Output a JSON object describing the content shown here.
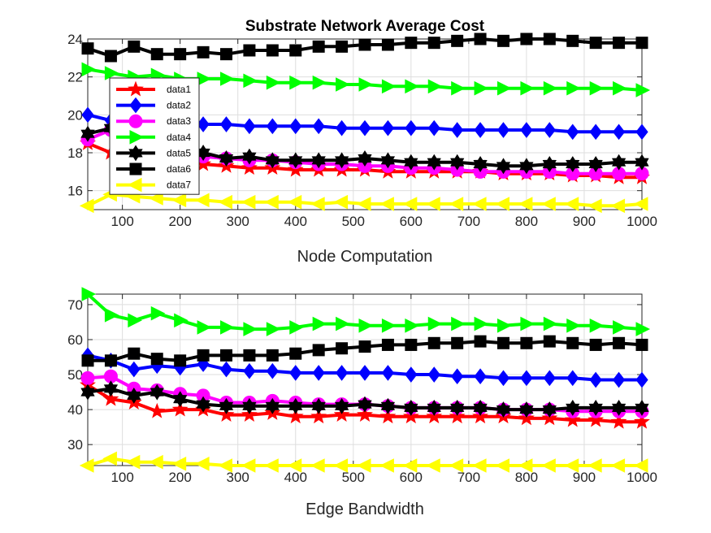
{
  "chart_data": [
    {
      "type": "line",
      "title": "Substrate Network Average Cost",
      "xlabel": "Node Computation",
      "ylabel": "",
      "xlim": [
        40,
        1000
      ],
      "ylim": [
        15,
        24
      ],
      "xticks": [
        100,
        200,
        300,
        400,
        500,
        600,
        700,
        800,
        900,
        1000
      ],
      "yticks": [
        16,
        18,
        20,
        22,
        24
      ],
      "grid": true,
      "legend": "upper-left",
      "x": [
        40,
        80,
        120,
        160,
        200,
        240,
        280,
        320,
        360,
        400,
        440,
        480,
        520,
        560,
        600,
        640,
        680,
        720,
        760,
        800,
        840,
        880,
        920,
        960,
        1000
      ],
      "series": [
        {
          "name": "data1",
          "color": "#ff0000",
          "marker": "star",
          "values": [
            18.5,
            18.0,
            17.8,
            17.6,
            17.5,
            17.4,
            17.3,
            17.2,
            17.2,
            17.1,
            17.1,
            17.1,
            17.1,
            17.0,
            17.0,
            17.0,
            17.0,
            17.0,
            16.9,
            16.9,
            16.9,
            16.8,
            16.8,
            16.7,
            16.7
          ]
        },
        {
          "name": "data2",
          "color": "#0000ff",
          "marker": "diamond",
          "values": [
            20.0,
            19.7,
            19.6,
            19.6,
            19.5,
            19.5,
            19.5,
            19.4,
            19.4,
            19.4,
            19.4,
            19.3,
            19.3,
            19.3,
            19.3,
            19.3,
            19.2,
            19.2,
            19.2,
            19.2,
            19.2,
            19.1,
            19.1,
            19.1,
            19.1
          ]
        },
        {
          "name": "data3",
          "color": "#ff00ff",
          "marker": "circle",
          "values": [
            18.7,
            19.2,
            18.7,
            18.3,
            18.0,
            17.8,
            17.7,
            17.6,
            17.6,
            17.5,
            17.4,
            17.4,
            17.3,
            17.3,
            17.2,
            17.2,
            17.1,
            17.0,
            17.0,
            17.0,
            17.0,
            16.9,
            16.9,
            16.9,
            16.9
          ]
        },
        {
          "name": "data4",
          "color": "#00ff00",
          "marker": "triangle-right",
          "values": [
            22.4,
            22.2,
            22.0,
            22.1,
            21.9,
            21.9,
            21.9,
            21.8,
            21.7,
            21.7,
            21.7,
            21.6,
            21.6,
            21.5,
            21.5,
            21.5,
            21.4,
            21.4,
            21.4,
            21.4,
            21.4,
            21.4,
            21.4,
            21.4,
            21.3
          ]
        },
        {
          "name": "data5",
          "color": "#000000",
          "marker": "hexagram",
          "values": [
            19.0,
            19.3,
            18.8,
            18.4,
            18.2,
            18.0,
            17.7,
            17.8,
            17.6,
            17.6,
            17.6,
            17.6,
            17.7,
            17.6,
            17.5,
            17.5,
            17.5,
            17.4,
            17.3,
            17.3,
            17.4,
            17.4,
            17.4,
            17.5,
            17.5
          ]
        },
        {
          "name": "data6",
          "color": "#000000",
          "marker": "square",
          "values": [
            23.5,
            23.1,
            23.6,
            23.2,
            23.2,
            23.3,
            23.2,
            23.4,
            23.4,
            23.4,
            23.6,
            23.6,
            23.7,
            23.7,
            23.8,
            23.8,
            23.9,
            24.0,
            23.9,
            24.0,
            24.0,
            23.9,
            23.8,
            23.8,
            23.8
          ]
        },
        {
          "name": "data7",
          "color": "#ffff00",
          "marker": "triangle-left",
          "values": [
            15.2,
            15.8,
            15.7,
            15.6,
            15.5,
            15.5,
            15.4,
            15.4,
            15.4,
            15.4,
            15.3,
            15.4,
            15.3,
            15.3,
            15.3,
            15.3,
            15.3,
            15.3,
            15.3,
            15.3,
            15.3,
            15.3,
            15.2,
            15.2,
            15.3
          ]
        }
      ]
    },
    {
      "type": "line",
      "title": "",
      "xlabel": "Edge Bandwidth",
      "ylabel": "",
      "xlim": [
        40,
        1000
      ],
      "ylim": [
        24,
        73
      ],
      "xticks": [
        100,
        200,
        300,
        400,
        500,
        600,
        700,
        800,
        900,
        1000
      ],
      "yticks": [
        30,
        40,
        50,
        60,
        70
      ],
      "grid": true,
      "legend": "none",
      "x": [
        40,
        80,
        120,
        160,
        200,
        240,
        280,
        320,
        360,
        400,
        440,
        480,
        520,
        560,
        600,
        640,
        680,
        720,
        760,
        800,
        840,
        880,
        920,
        960,
        1000
      ],
      "series": [
        {
          "name": "data1",
          "color": "#ff0000",
          "marker": "star",
          "values": [
            47.0,
            43.0,
            42.0,
            39.5,
            40.0,
            40.0,
            38.5,
            38.5,
            39.0,
            38.0,
            38.0,
            38.5,
            38.5,
            38.0,
            38.0,
            38.0,
            38.0,
            38.0,
            38.0,
            37.5,
            37.5,
            37.0,
            37.0,
            36.5,
            36.5
          ]
        },
        {
          "name": "data2",
          "color": "#0000ff",
          "marker": "diamond",
          "values": [
            55.5,
            54.0,
            51.5,
            52.5,
            52.0,
            53.0,
            51.5,
            51.0,
            51.0,
            50.5,
            50.5,
            50.5,
            50.5,
            50.5,
            50.0,
            50.0,
            49.5,
            49.5,
            49.0,
            49.0,
            49.0,
            49.0,
            48.5,
            48.5,
            48.5
          ]
        },
        {
          "name": "data3",
          "color": "#ff00ff",
          "marker": "circle",
          "values": [
            49.0,
            49.5,
            46.0,
            45.5,
            44.5,
            44.0,
            42.0,
            42.0,
            42.5,
            42.0,
            41.5,
            41.5,
            41.5,
            41.0,
            40.5,
            40.5,
            40.5,
            40.5,
            40.0,
            40.0,
            40.0,
            39.5,
            39.5,
            39.5,
            39.5
          ]
        },
        {
          "name": "data4",
          "color": "#00ff00",
          "marker": "triangle-right",
          "values": [
            73.0,
            67.0,
            65.5,
            67.5,
            65.5,
            63.5,
            63.5,
            63.0,
            63.0,
            63.5,
            64.5,
            64.5,
            64.0,
            64.0,
            64.0,
            64.5,
            64.5,
            64.5,
            64.0,
            64.5,
            64.5,
            64.0,
            64.0,
            63.5,
            63.0
          ]
        },
        {
          "name": "data5",
          "color": "#000000",
          "marker": "hexagram",
          "values": [
            45.0,
            46.0,
            44.0,
            45.0,
            43.0,
            41.5,
            41.0,
            41.0,
            41.0,
            41.0,
            41.0,
            41.0,
            41.5,
            41.0,
            40.5,
            40.5,
            40.5,
            40.5,
            40.0,
            40.0,
            40.0,
            40.5,
            40.5,
            40.5,
            40.5
          ]
        },
        {
          "name": "data6",
          "color": "#000000",
          "marker": "square",
          "values": [
            54.0,
            54.0,
            56.0,
            54.5,
            54.0,
            55.5,
            55.5,
            55.5,
            55.5,
            56.0,
            57.0,
            57.5,
            58.0,
            58.5,
            58.5,
            59.0,
            59.0,
            59.5,
            59.0,
            59.0,
            59.5,
            59.0,
            58.5,
            59.0,
            58.5
          ]
        },
        {
          "name": "data7",
          "color": "#ffff00",
          "marker": "triangle-left",
          "values": [
            24.0,
            26.0,
            25.0,
            25.0,
            24.5,
            24.5,
            24.0,
            24.0,
            24.0,
            24.0,
            24.0,
            24.0,
            24.0,
            24.0,
            24.0,
            24.0,
            24.0,
            24.0,
            24.0,
            24.0,
            24.0,
            24.0,
            24.0,
            24.0,
            24.0
          ]
        }
      ]
    }
  ]
}
